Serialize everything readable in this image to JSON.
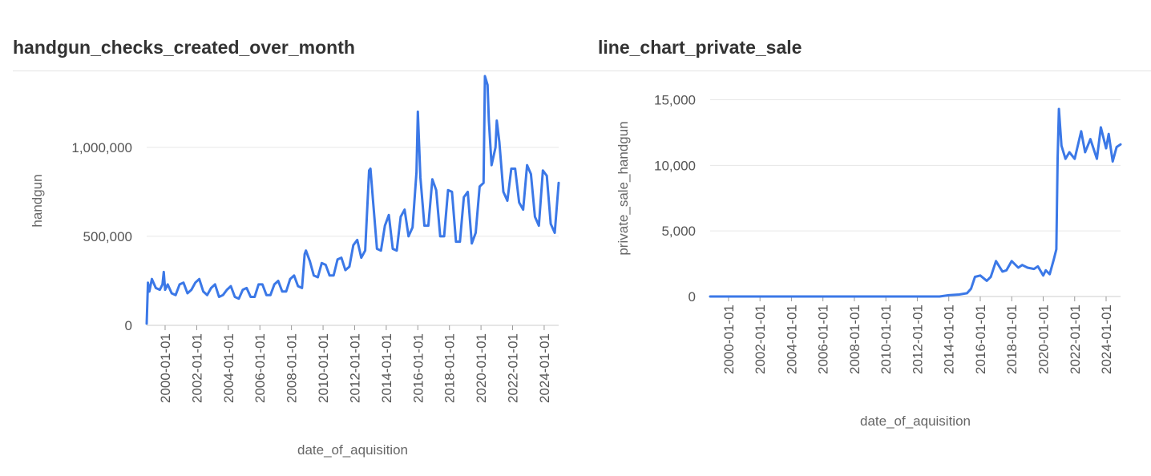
{
  "charts": [
    {
      "title": "handgun_checks_created_over_month"
    },
    {
      "title": "line_chart_private_sale"
    }
  ],
  "chart_data": [
    {
      "type": "line",
      "title": "handgun_checks_created_over_month",
      "xlabel": "date_of_aquisition",
      "ylabel": "handgun",
      "x_range": [
        "1998-11-01",
        "2024-12-01"
      ],
      "ylim": [
        0,
        1400000
      ],
      "y_ticks": [
        0,
        500000,
        1000000
      ],
      "y_tick_labels": [
        "0",
        "500,000",
        "1,000,000"
      ],
      "x_ticks": [
        "2000-01-01",
        "2002-01-01",
        "2004-01-01",
        "2006-01-01",
        "2008-01-01",
        "2010-01-01",
        "2012-01-01",
        "2014-01-01",
        "2016-01-01",
        "2018-01-01",
        "2020-01-01",
        "2022-01-01",
        "2024-01-01"
      ],
      "grid": true,
      "color": "#3b78e7",
      "series": [
        {
          "x": [
            "1998-11-01",
            "1998-12-01",
            "1999-01-01",
            "1999-03-01",
            "1999-06-01",
            "1999-09-01",
            "1999-11-01",
            "1999-12-01",
            "2000-01-01",
            "2000-03-01",
            "2000-06-01",
            "2000-09-01",
            "2000-12-01",
            "2001-03-01",
            "2001-06-01",
            "2001-09-01",
            "2001-12-01",
            "2002-03-01",
            "2002-06-01",
            "2002-09-01",
            "2002-12-01",
            "2003-03-01",
            "2003-06-01",
            "2003-09-01",
            "2003-12-01",
            "2004-03-01",
            "2004-06-01",
            "2004-09-01",
            "2004-12-01",
            "2005-03-01",
            "2005-06-01",
            "2005-09-01",
            "2005-12-01",
            "2006-03-01",
            "2006-06-01",
            "2006-09-01",
            "2006-12-01",
            "2007-03-01",
            "2007-06-01",
            "2007-09-01",
            "2007-12-01",
            "2008-03-01",
            "2008-06-01",
            "2008-09-01",
            "2008-11-01",
            "2008-12-01",
            "2009-03-01",
            "2009-06-01",
            "2009-09-01",
            "2009-12-01",
            "2010-03-01",
            "2010-06-01",
            "2010-09-01",
            "2010-12-01",
            "2011-03-01",
            "2011-06-01",
            "2011-09-01",
            "2011-12-01",
            "2012-03-01",
            "2012-06-01",
            "2012-09-01",
            "2012-12-01",
            "2013-01-01",
            "2013-03-01",
            "2013-06-01",
            "2013-09-01",
            "2013-12-01",
            "2014-03-01",
            "2014-06-01",
            "2014-09-01",
            "2014-12-01",
            "2015-03-01",
            "2015-06-01",
            "2015-09-01",
            "2015-12-01",
            "2016-01-01",
            "2016-03-01",
            "2016-06-01",
            "2016-09-01",
            "2016-12-01",
            "2017-03-01",
            "2017-06-01",
            "2017-09-01",
            "2017-12-01",
            "2018-03-01",
            "2018-06-01",
            "2018-09-01",
            "2018-12-01",
            "2019-03-01",
            "2019-06-01",
            "2019-09-01",
            "2019-12-01",
            "2020-03-01",
            "2020-04-01",
            "2020-06-01",
            "2020-07-01",
            "2020-09-01",
            "2020-12-01",
            "2021-01-01",
            "2021-03-01",
            "2021-06-01",
            "2021-09-01",
            "2021-12-01",
            "2022-03-01",
            "2022-06-01",
            "2022-09-01",
            "2022-12-01",
            "2023-03-01",
            "2023-06-01",
            "2023-09-01",
            "2023-12-01",
            "2024-03-01",
            "2024-06-01",
            "2024-09-01",
            "2024-12-01"
          ],
          "values": [
            10000,
            240000,
            190000,
            260000,
            210000,
            200000,
            230000,
            300000,
            200000,
            230000,
            180000,
            170000,
            230000,
            240000,
            180000,
            200000,
            240000,
            260000,
            190000,
            170000,
            210000,
            230000,
            160000,
            170000,
            200000,
            220000,
            160000,
            150000,
            200000,
            210000,
            160000,
            160000,
            230000,
            230000,
            170000,
            170000,
            230000,
            250000,
            190000,
            190000,
            260000,
            280000,
            220000,
            210000,
            400000,
            420000,
            360000,
            280000,
            270000,
            350000,
            340000,
            280000,
            280000,
            370000,
            380000,
            310000,
            330000,
            450000,
            480000,
            380000,
            420000,
            870000,
            880000,
            700000,
            430000,
            420000,
            560000,
            620000,
            430000,
            420000,
            610000,
            650000,
            500000,
            550000,
            860000,
            1200000,
            830000,
            560000,
            560000,
            820000,
            760000,
            500000,
            500000,
            760000,
            750000,
            470000,
            470000,
            720000,
            750000,
            460000,
            520000,
            780000,
            800000,
            1400000,
            1350000,
            1150000,
            900000,
            1000000,
            1150000,
            1030000,
            750000,
            700000,
            880000,
            880000,
            690000,
            650000,
            900000,
            850000,
            610000,
            560000,
            870000,
            840000,
            570000,
            520000,
            800000
          ]
        }
      ]
    },
    {
      "type": "line",
      "title": "line_chart_private_sale",
      "xlabel": "date_of_aquisition",
      "ylabel": "private_sale_handgun",
      "x_range": [
        "1998-11-01",
        "2024-12-01"
      ],
      "ylim": [
        0,
        16500
      ],
      "y_ticks": [
        0,
        5000,
        10000,
        15000
      ],
      "y_tick_labels": [
        "0",
        "5,000",
        "10,000",
        "15,000"
      ],
      "x_ticks": [
        "2000-01-01",
        "2002-01-01",
        "2004-01-01",
        "2006-01-01",
        "2008-01-01",
        "2010-01-01",
        "2012-01-01",
        "2014-01-01",
        "2016-01-01",
        "2018-01-01",
        "2020-01-01",
        "2022-01-01",
        "2024-01-01"
      ],
      "grid": true,
      "color": "#3b78e7",
      "series": [
        {
          "x": [
            "1998-11-01",
            "2013-06-01",
            "2014-01-01",
            "2014-09-01",
            "2015-03-01",
            "2015-06-01",
            "2015-09-01",
            "2016-01-01",
            "2016-06-01",
            "2016-09-01",
            "2017-01-01",
            "2017-06-01",
            "2017-09-01",
            "2018-01-01",
            "2018-06-01",
            "2018-09-01",
            "2019-01-01",
            "2019-06-01",
            "2019-09-01",
            "2020-01-01",
            "2020-03-01",
            "2020-06-01",
            "2020-09-01",
            "2020-11-01",
            "2020-12-01",
            "2021-01-01",
            "2021-03-01",
            "2021-06-01",
            "2021-09-01",
            "2022-01-01",
            "2022-06-01",
            "2022-09-01",
            "2023-01-01",
            "2023-06-01",
            "2023-09-01",
            "2024-01-01",
            "2024-03-01",
            "2024-06-01",
            "2024-09-01",
            "2024-12-01"
          ],
          "values": [
            0,
            0,
            100,
            150,
            250,
            600,
            1500,
            1600,
            1200,
            1500,
            2700,
            1900,
            2000,
            2700,
            2200,
            2400,
            2200,
            2100,
            2300,
            1600,
            2000,
            1700,
            2800,
            3600,
            10500,
            14300,
            11500,
            10500,
            11000,
            10500,
            12600,
            11000,
            12000,
            10500,
            12900,
            11300,
            12400,
            10300,
            11400,
            11600
          ]
        }
      ]
    }
  ]
}
